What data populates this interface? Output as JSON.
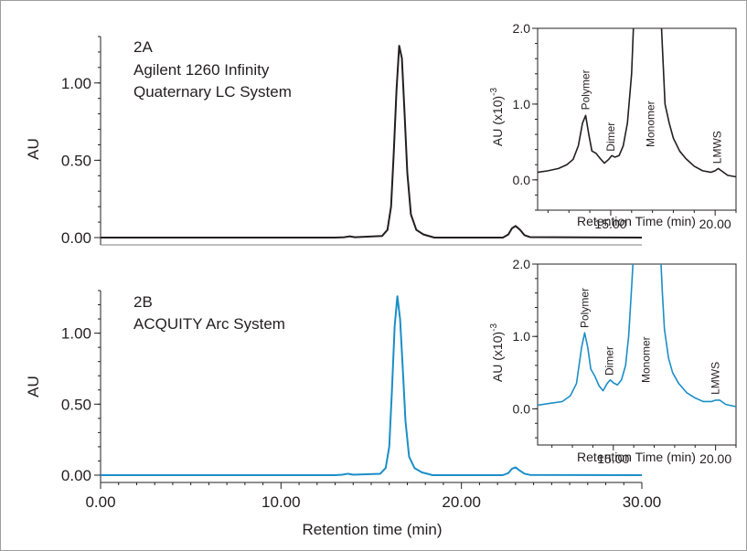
{
  "chart_data": [
    {
      "type": "line",
      "panel": "main-top",
      "panel_label": "2A",
      "system_lines": [
        "Agilent 1260 Infinity",
        "Quaternary LC System"
      ],
      "xlabel": "",
      "ylabel": "AU",
      "xlim": [
        0,
        30
      ],
      "ylim": [
        0,
        1.3
      ],
      "y_ticks": [
        0,
        0.5,
        1.0
      ],
      "y_tick_labels": [
        "0.00",
        "0.50",
        "1.00"
      ],
      "color": "#231f20",
      "series": [
        {
          "x": [
            0,
            13,
            13.5,
            13.8,
            14.1,
            15.6,
            15.9,
            16.1,
            16.25,
            16.4,
            16.55,
            16.7,
            16.85,
            17.0,
            17.2,
            17.5,
            17.9,
            18.5,
            22.3,
            22.6,
            22.8,
            23.0,
            23.25,
            23.5,
            23.8,
            30
          ],
          "y": [
            0.0,
            0.0,
            0.002,
            0.008,
            0.002,
            0.01,
            0.05,
            0.2,
            0.55,
            0.95,
            1.24,
            1.16,
            0.8,
            0.42,
            0.15,
            0.05,
            0.02,
            0.0,
            0.0,
            0.02,
            0.06,
            0.075,
            0.05,
            0.015,
            0.003,
            0.0
          ]
        }
      ]
    },
    {
      "type": "line",
      "panel": "inset-top",
      "xlabel": "Retention Time (min)",
      "ylabel": "AU (x10)",
      "ylabel_exponent": "-3",
      "xlim": [
        11.5,
        21
      ],
      "ylim": [
        -0.4,
        2.0
      ],
      "x_ticks": [
        15,
        20
      ],
      "x_tick_labels": [
        "15.00",
        "20.00"
      ],
      "y_ticks": [
        0,
        1,
        2
      ],
      "y_tick_labels": [
        "0.0",
        "1.0",
        "2.0"
      ],
      "annotations": [
        {
          "text": "Polymer",
          "x": 13.8
        },
        {
          "text": "Dimer",
          "x": 15.0
        },
        {
          "text": "Monomer",
          "x": 16.9
        },
        {
          "text": "LMWS",
          "x": 20.1
        }
      ],
      "color": "#231f20",
      "series": [
        {
          "x": [
            11.5,
            12.0,
            12.5,
            12.9,
            13.2,
            13.45,
            13.65,
            13.8,
            13.95,
            14.1,
            14.3,
            14.5,
            14.7,
            14.9,
            15.05,
            15.2,
            15.4,
            15.6,
            15.8,
            16.0,
            16.1,
            16.2,
            17.4,
            17.5,
            17.6,
            17.8,
            18.0,
            18.3,
            18.6,
            19.0,
            19.4,
            19.8,
            20.0,
            20.15,
            20.3,
            20.6,
            21.0
          ],
          "y": [
            0.1,
            0.12,
            0.15,
            0.2,
            0.27,
            0.45,
            0.75,
            0.85,
            0.6,
            0.38,
            0.35,
            0.28,
            0.22,
            0.27,
            0.32,
            0.3,
            0.32,
            0.45,
            0.75,
            1.4,
            2.1,
            2.2,
            2.2,
            1.6,
            1.0,
            0.75,
            0.55,
            0.38,
            0.28,
            0.18,
            0.12,
            0.1,
            0.12,
            0.15,
            0.12,
            0.06,
            0.04
          ]
        }
      ]
    },
    {
      "type": "line",
      "panel": "main-bottom",
      "panel_label": "2B",
      "system_lines": [
        "ACQUITY Arc System"
      ],
      "xlabel": "Retention time (min)",
      "ylabel": "AU",
      "xlim": [
        0,
        30
      ],
      "ylim": [
        0,
        1.3
      ],
      "x_ticks": [
        0,
        10,
        20,
        30
      ],
      "x_tick_labels": [
        "0.00",
        "10.00",
        "20.00",
        "30.00"
      ],
      "y_ticks": [
        0,
        0.5,
        1.0
      ],
      "y_tick_labels": [
        "0.00",
        "0.50",
        "1.00"
      ],
      "color": "#1b8ec7",
      "series": [
        {
          "x": [
            0,
            13,
            13.4,
            13.7,
            14.0,
            15.5,
            15.8,
            16.0,
            16.15,
            16.3,
            16.45,
            16.6,
            16.75,
            16.9,
            17.1,
            17.4,
            17.8,
            18.4,
            22.3,
            22.6,
            22.8,
            23.0,
            23.2,
            23.5,
            23.8,
            30
          ],
          "y": [
            0.0,
            0.0,
            0.003,
            0.01,
            0.003,
            0.01,
            0.05,
            0.2,
            0.6,
            1.05,
            1.26,
            1.1,
            0.75,
            0.38,
            0.13,
            0.05,
            0.02,
            0.0,
            0.0,
            0.015,
            0.045,
            0.055,
            0.035,
            0.01,
            0.002,
            0.0
          ]
        }
      ]
    },
    {
      "type": "line",
      "panel": "inset-bottom",
      "xlabel": "Retention Time (min)",
      "ylabel": "AU (x10)",
      "ylabel_exponent": "-3",
      "xlim": [
        11.3,
        21
      ],
      "ylim": [
        -0.5,
        2.0
      ],
      "x_ticks": [
        15,
        20
      ],
      "x_tick_labels": [
        "15.00",
        "20.00"
      ],
      "y_ticks": [
        0,
        1,
        2
      ],
      "y_tick_labels": [
        "0.0",
        "1.0",
        "2.0"
      ],
      "annotations": [
        {
          "text": "Polymer",
          "x": 13.6
        },
        {
          "text": "Dimer",
          "x": 14.8
        },
        {
          "text": "Monomer",
          "x": 16.6
        },
        {
          "text": "LMWS",
          "x": 20.0
        }
      ],
      "color": "#1b8ec7",
      "series": [
        {
          "x": [
            11.3,
            12.0,
            12.5,
            12.9,
            13.2,
            13.45,
            13.6,
            13.75,
            13.9,
            14.1,
            14.3,
            14.5,
            14.7,
            14.85,
            15.0,
            15.2,
            15.4,
            15.6,
            15.75,
            15.9,
            16.0,
            17.3,
            17.4,
            17.5,
            17.7,
            17.9,
            18.2,
            18.6,
            19.0,
            19.4,
            19.8,
            20.0,
            20.2,
            20.5,
            21.0
          ],
          "y": [
            0.05,
            0.08,
            0.1,
            0.18,
            0.35,
            0.85,
            1.05,
            0.85,
            0.55,
            0.45,
            0.32,
            0.25,
            0.35,
            0.4,
            0.36,
            0.33,
            0.4,
            0.6,
            1.0,
            1.7,
            2.2,
            2.2,
            1.6,
            1.1,
            0.7,
            0.5,
            0.35,
            0.22,
            0.15,
            0.1,
            0.1,
            0.12,
            0.12,
            0.06,
            0.03
          ]
        }
      ]
    }
  ]
}
